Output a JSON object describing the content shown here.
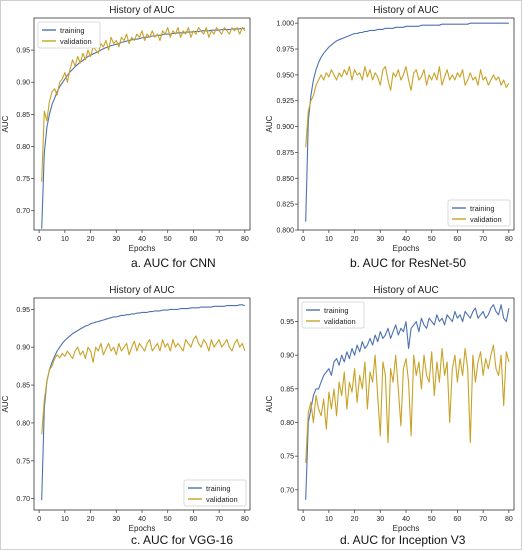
{
  "colors": {
    "training": "#4c72b0",
    "validation": "#c9a227",
    "axis": "#333333",
    "text": "#222222"
  },
  "captions": [
    "a. AUC for CNN",
    "b. AUC for ResNet-50",
    "c. AUC for VGG-16",
    "d. AUC for Inception V3"
  ],
  "chart_data": [
    {
      "type": "line",
      "title": "History of AUC",
      "xlabel": "Epochs",
      "ylabel": "AUC",
      "xlim": [
        -2,
        82
      ],
      "ylim": [
        0.67,
        1.0
      ],
      "grid": false,
      "legend": "top-left",
      "xticks": [
        "0",
        "10",
        "20",
        "30",
        "40",
        "50",
        "60",
        "70",
        "80"
      ],
      "yticks": [
        "0.70",
        "0.75",
        "0.80",
        "0.85",
        "0.90",
        "0.95"
      ],
      "x": [
        1,
        2,
        3,
        4,
        5,
        6,
        7,
        8,
        9,
        10,
        11,
        12,
        13,
        14,
        15,
        16,
        17,
        18,
        19,
        20,
        21,
        22,
        23,
        24,
        25,
        26,
        27,
        28,
        29,
        30,
        31,
        32,
        33,
        34,
        35,
        36,
        37,
        38,
        39,
        40,
        41,
        42,
        43,
        44,
        45,
        46,
        47,
        48,
        49,
        50,
        51,
        52,
        53,
        54,
        55,
        56,
        57,
        58,
        59,
        60,
        61,
        62,
        63,
        64,
        65,
        66,
        67,
        68,
        69,
        70,
        71,
        72,
        73,
        74,
        75,
        76,
        77,
        78,
        79,
        80
      ],
      "series": [
        {
          "name": "training",
          "values": [
            0.672,
            0.79,
            0.83,
            0.85,
            0.865,
            0.875,
            0.885,
            0.893,
            0.899,
            0.905,
            0.911,
            0.916,
            0.92,
            0.924,
            0.928,
            0.931,
            0.934,
            0.937,
            0.94,
            0.942,
            0.944,
            0.946,
            0.948,
            0.95,
            0.952,
            0.954,
            0.955,
            0.957,
            0.958,
            0.959,
            0.96,
            0.962,
            0.963,
            0.964,
            0.965,
            0.966,
            0.967,
            0.967,
            0.968,
            0.969,
            0.97,
            0.97,
            0.971,
            0.972,
            0.972,
            0.973,
            0.973,
            0.974,
            0.975,
            0.975,
            0.975,
            0.976,
            0.976,
            0.977,
            0.977,
            0.977,
            0.978,
            0.978,
            0.978,
            0.979,
            0.979,
            0.979,
            0.98,
            0.98,
            0.98,
            0.98,
            0.981,
            0.981,
            0.981,
            0.981,
            0.982,
            0.982,
            0.982,
            0.982,
            0.983,
            0.983,
            0.983,
            0.983,
            0.984,
            0.984
          ]
        },
        {
          "name": "validation",
          "values": [
            0.745,
            0.855,
            0.84,
            0.87,
            0.885,
            0.89,
            0.88,
            0.9,
            0.905,
            0.915,
            0.9,
            0.92,
            0.935,
            0.925,
            0.94,
            0.93,
            0.945,
            0.935,
            0.95,
            0.94,
            0.955,
            0.95,
            0.945,
            0.96,
            0.955,
            0.965,
            0.95,
            0.97,
            0.96,
            0.965,
            0.955,
            0.97,
            0.965,
            0.975,
            0.96,
            0.97,
            0.965,
            0.975,
            0.97,
            0.98,
            0.965,
            0.975,
            0.97,
            0.98,
            0.97,
            0.975,
            0.965,
            0.98,
            0.975,
            0.985,
            0.97,
            0.98,
            0.975,
            0.985,
            0.97,
            0.98,
            0.975,
            0.985,
            0.97,
            0.98,
            0.975,
            0.985,
            0.98,
            0.975,
            0.985,
            0.97,
            0.98,
            0.975,
            0.985,
            0.98,
            0.975,
            0.985,
            0.98,
            0.975,
            0.985,
            0.98,
            0.985,
            0.975,
            0.985,
            0.98
          ]
        }
      ]
    },
    {
      "type": "line",
      "title": "History of AUC",
      "xlabel": "Epochs",
      "ylabel": "AUC",
      "xlim": [
        -2,
        82
      ],
      "ylim": [
        0.8,
        1.005
      ],
      "grid": false,
      "legend": "bottom-right",
      "xticks": [
        "0",
        "10",
        "20",
        "30",
        "40",
        "50",
        "60",
        "70",
        "80"
      ],
      "yticks": [
        "0.800",
        "0.825",
        "0.850",
        "0.875",
        "0.900",
        "0.925",
        "0.950",
        "0.975",
        "1.000"
      ],
      "x": [
        1,
        2,
        3,
        4,
        5,
        6,
        7,
        8,
        9,
        10,
        11,
        12,
        13,
        14,
        15,
        16,
        17,
        18,
        19,
        20,
        21,
        22,
        23,
        24,
        25,
        26,
        27,
        28,
        29,
        30,
        31,
        32,
        33,
        34,
        35,
        36,
        37,
        38,
        39,
        40,
        41,
        42,
        43,
        44,
        45,
        46,
        47,
        48,
        49,
        50,
        51,
        52,
        53,
        54,
        55,
        56,
        57,
        58,
        59,
        60,
        61,
        62,
        63,
        64,
        65,
        66,
        67,
        68,
        69,
        70,
        71,
        72,
        73,
        74,
        75,
        76,
        77,
        78,
        79,
        80
      ],
      "series": [
        {
          "name": "training",
          "values": [
            0.808,
            0.905,
            0.93,
            0.945,
            0.955,
            0.962,
            0.967,
            0.971,
            0.974,
            0.977,
            0.979,
            0.981,
            0.983,
            0.984,
            0.985,
            0.986,
            0.987,
            0.988,
            0.989,
            0.99,
            0.99,
            0.991,
            0.991,
            0.992,
            0.992,
            0.993,
            0.993,
            0.993,
            0.994,
            0.994,
            0.994,
            0.995,
            0.995,
            0.995,
            0.995,
            0.996,
            0.996,
            0.996,
            0.996,
            0.997,
            0.997,
            0.997,
            0.997,
            0.997,
            0.997,
            0.998,
            0.998,
            0.998,
            0.998,
            0.998,
            0.998,
            0.998,
            0.998,
            0.999,
            0.999,
            0.999,
            0.999,
            0.999,
            0.999,
            0.999,
            0.999,
            0.999,
            0.999,
            0.999,
            1.0,
            1.0,
            1.0,
            1.0,
            1.0,
            1.0,
            1.0,
            1.0,
            1.0,
            1.0,
            1.0,
            1.0,
            1.0,
            1.0,
            1.0,
            1.0
          ]
        },
        {
          "name": "validation",
          "values": [
            0.88,
            0.915,
            0.925,
            0.93,
            0.94,
            0.945,
            0.95,
            0.945,
            0.952,
            0.948,
            0.955,
            0.95,
            0.945,
            0.952,
            0.948,
            0.955,
            0.95,
            0.958,
            0.945,
            0.955,
            0.95,
            0.952,
            0.945,
            0.958,
            0.948,
            0.955,
            0.945,
            0.952,
            0.948,
            0.94,
            0.955,
            0.958,
            0.945,
            0.935,
            0.952,
            0.948,
            0.955,
            0.945,
            0.95,
            0.958,
            0.945,
            0.935,
            0.952,
            0.955,
            0.945,
            0.948,
            0.955,
            0.94,
            0.95,
            0.945,
            0.952,
            0.945,
            0.958,
            0.94,
            0.948,
            0.955,
            0.945,
            0.95,
            0.945,
            0.952,
            0.948,
            0.955,
            0.94,
            0.945,
            0.952,
            0.945,
            0.948,
            0.94,
            0.955,
            0.945,
            0.948,
            0.94,
            0.945,
            0.95,
            0.945,
            0.948,
            0.94,
            0.945,
            0.938,
            0.942
          ]
        }
      ]
    },
    {
      "type": "line",
      "title": "History of AUC",
      "xlabel": "Epochs",
      "ylabel": "AUC",
      "xlim": [
        -2,
        82
      ],
      "ylim": [
        0.685,
        0.965
      ],
      "grid": false,
      "legend": "bottom-right",
      "xticks": [
        "0",
        "10",
        "20",
        "30",
        "40",
        "50",
        "60",
        "70",
        "80"
      ],
      "yticks": [
        "0.70",
        "0.75",
        "0.80",
        "0.85",
        "0.90",
        "0.95"
      ],
      "x": [
        1,
        2,
        3,
        4,
        5,
        6,
        7,
        8,
        9,
        10,
        11,
        12,
        13,
        14,
        15,
        16,
        17,
        18,
        19,
        20,
        21,
        22,
        23,
        24,
        25,
        26,
        27,
        28,
        29,
        30,
        31,
        32,
        33,
        34,
        35,
        36,
        37,
        38,
        39,
        40,
        41,
        42,
        43,
        44,
        45,
        46,
        47,
        48,
        49,
        50,
        51,
        52,
        53,
        54,
        55,
        56,
        57,
        58,
        59,
        60,
        61,
        62,
        63,
        64,
        65,
        66,
        67,
        68,
        69,
        70,
        71,
        72,
        73,
        74,
        75,
        76,
        77,
        78,
        79,
        80
      ],
      "series": [
        {
          "name": "training",
          "values": [
            0.698,
            0.82,
            0.855,
            0.87,
            0.88,
            0.888,
            0.895,
            0.9,
            0.905,
            0.909,
            0.912,
            0.915,
            0.918,
            0.92,
            0.922,
            0.924,
            0.926,
            0.928,
            0.929,
            0.931,
            0.932,
            0.933,
            0.934,
            0.935,
            0.936,
            0.937,
            0.938,
            0.939,
            0.94,
            0.94,
            0.941,
            0.942,
            0.942,
            0.943,
            0.943,
            0.944,
            0.944,
            0.945,
            0.945,
            0.946,
            0.946,
            0.946,
            0.947,
            0.947,
            0.948,
            0.948,
            0.948,
            0.949,
            0.949,
            0.949,
            0.95,
            0.95,
            0.95,
            0.95,
            0.951,
            0.951,
            0.951,
            0.951,
            0.952,
            0.952,
            0.952,
            0.952,
            0.953,
            0.953,
            0.953,
            0.953,
            0.953,
            0.954,
            0.954,
            0.954,
            0.954,
            0.954,
            0.955,
            0.955,
            0.955,
            0.955,
            0.955,
            0.956,
            0.956,
            0.955
          ]
        },
        {
          "name": "validation",
          "values": [
            0.785,
            0.83,
            0.855,
            0.87,
            0.875,
            0.885,
            0.89,
            0.886,
            0.892,
            0.888,
            0.895,
            0.89,
            0.885,
            0.895,
            0.9,
            0.89,
            0.895,
            0.885,
            0.9,
            0.895,
            0.88,
            0.9,
            0.895,
            0.905,
            0.89,
            0.898,
            0.905,
            0.895,
            0.9,
            0.89,
            0.905,
            0.895,
            0.9,
            0.905,
            0.89,
            0.9,
            0.908,
            0.895,
            0.905,
            0.9,
            0.895,
            0.905,
            0.91,
            0.895,
            0.9,
            0.905,
            0.895,
            0.91,
            0.9,
            0.905,
            0.895,
            0.91,
            0.9,
            0.905,
            0.9,
            0.895,
            0.91,
            0.905,
            0.9,
            0.91,
            0.915,
            0.905,
            0.9,
            0.91,
            0.905,
            0.895,
            0.91,
            0.9,
            0.905,
            0.91,
            0.9,
            0.905,
            0.91,
            0.9,
            0.895,
            0.905,
            0.91,
            0.9,
            0.905,
            0.895
          ]
        }
      ]
    },
    {
      "type": "line",
      "title": "History of AUC",
      "xlabel": "Epochs",
      "ylabel": "AUC",
      "xlim": [
        -2,
        82
      ],
      "ylim": [
        0.67,
        0.985
      ],
      "grid": false,
      "legend": "top-left",
      "xticks": [
        "0",
        "10",
        "20",
        "30",
        "40",
        "50",
        "60",
        "70",
        "80"
      ],
      "yticks": [
        "0.70",
        "0.75",
        "0.80",
        "0.85",
        "0.90",
        "0.95"
      ],
      "x": [
        1,
        2,
        3,
        4,
        5,
        6,
        7,
        8,
        9,
        10,
        11,
        12,
        13,
        14,
        15,
        16,
        17,
        18,
        19,
        20,
        21,
        22,
        23,
        24,
        25,
        26,
        27,
        28,
        29,
        30,
        31,
        32,
        33,
        34,
        35,
        36,
        37,
        38,
        39,
        40,
        41,
        42,
        43,
        44,
        45,
        46,
        47,
        48,
        49,
        50,
        51,
        52,
        53,
        54,
        55,
        56,
        57,
        58,
        59,
        60,
        61,
        62,
        63,
        64,
        65,
        66,
        67,
        68,
        69,
        70,
        71,
        72,
        73,
        74,
        75,
        76,
        77,
        78,
        79,
        80
      ],
      "series": [
        {
          "name": "training",
          "values": [
            0.685,
            0.8,
            0.82,
            0.84,
            0.85,
            0.85,
            0.86,
            0.87,
            0.875,
            0.88,
            0.87,
            0.89,
            0.895,
            0.885,
            0.9,
            0.89,
            0.905,
            0.895,
            0.91,
            0.9,
            0.915,
            0.905,
            0.92,
            0.91,
            0.915,
            0.925,
            0.915,
            0.93,
            0.92,
            0.935,
            0.925,
            0.93,
            0.94,
            0.925,
            0.935,
            0.945,
            0.93,
            0.94,
            0.935,
            0.95,
            0.91,
            0.94,
            0.945,
            0.95,
            0.935,
            0.955,
            0.945,
            0.94,
            0.955,
            0.95,
            0.945,
            0.96,
            0.95,
            0.955,
            0.945,
            0.96,
            0.955,
            0.95,
            0.965,
            0.955,
            0.96,
            0.95,
            0.965,
            0.96,
            0.955,
            0.965,
            0.97,
            0.955,
            0.96,
            0.965,
            0.955,
            0.96,
            0.97,
            0.975,
            0.965,
            0.96,
            0.975,
            0.955,
            0.95,
            0.97
          ]
        },
        {
          "name": "validation",
          "values": [
            0.74,
            0.815,
            0.83,
            0.8,
            0.84,
            0.82,
            0.81,
            0.835,
            0.79,
            0.845,
            0.82,
            0.85,
            0.81,
            0.86,
            0.84,
            0.875,
            0.82,
            0.86,
            0.845,
            0.88,
            0.83,
            0.87,
            0.85,
            0.89,
            0.82,
            0.875,
            0.86,
            0.9,
            0.84,
            0.78,
            0.89,
            0.87,
            0.77,
            0.88,
            0.86,
            0.9,
            0.85,
            0.795,
            0.88,
            0.895,
            0.86,
            0.78,
            0.9,
            0.87,
            0.89,
            0.85,
            0.9,
            0.87,
            0.86,
            0.905,
            0.84,
            0.89,
            0.86,
            0.91,
            0.87,
            0.89,
            0.8,
            0.88,
            0.9,
            0.86,
            0.895,
            0.87,
            0.91,
            0.88,
            0.77,
            0.9,
            0.86,
            0.89,
            0.905,
            0.87,
            0.895,
            0.88,
            0.9,
            0.915,
            0.88,
            0.87,
            0.9,
            0.825,
            0.905,
            0.89
          ]
        }
      ]
    }
  ]
}
